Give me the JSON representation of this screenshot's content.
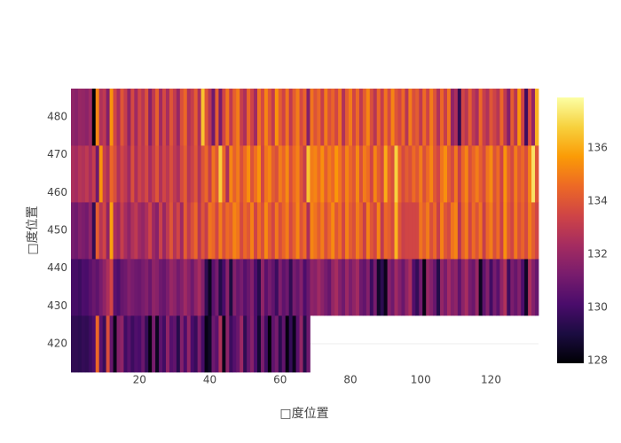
{
  "chart_data": {
    "type": "heatmap",
    "x_label": "□度位置",
    "y_label": "□度位置",
    "x": [
      1,
      2,
      3,
      4,
      5,
      6,
      7,
      8,
      9,
      10,
      11,
      12,
      13,
      14,
      15,
      16,
      17,
      18,
      19,
      20,
      21,
      22,
      23,
      24,
      25,
      26,
      27,
      28,
      29,
      30,
      31,
      32,
      33,
      34,
      35,
      36,
      37,
      38,
      39,
      40,
      41,
      42,
      43,
      44,
      45,
      46,
      47,
      48,
      49,
      50,
      51,
      52,
      53,
      54,
      55,
      56,
      57,
      58,
      59,
      60,
      61,
      62,
      63,
      64,
      65,
      66,
      67,
      68,
      69,
      70,
      71,
      72,
      73,
      74,
      75,
      76,
      77,
      78,
      79,
      80,
      81,
      82,
      83,
      84,
      85,
      86,
      87,
      88,
      89,
      90,
      91,
      92,
      93,
      94,
      95,
      96,
      97,
      98,
      99,
      100,
      101,
      102,
      103,
      104,
      105,
      106,
      107,
      108,
      109,
      110,
      111,
      112,
      113,
      114,
      115,
      116,
      117,
      118,
      119,
      120,
      121,
      122,
      123,
      124,
      125,
      126,
      127,
      128,
      129,
      130,
      131,
      132,
      133
    ],
    "y": [
      420,
      435,
      450,
      465,
      480
    ],
    "z": [
      [
        129.5,
        129.5,
        129.4,
        129.6,
        129.5,
        129.8,
        130.2,
        134.5,
        130.5,
        129.7,
        133.8,
        130.8,
        128.3,
        131.5,
        131.8,
        129.9,
        130.5,
        129.8,
        130.3,
        130.1,
        130.9,
        129.6,
        128.1,
        131.2,
        128.4,
        130.6,
        129.9,
        131.8,
        130.4,
        130.7,
        129.3,
        131.5,
        130.2,
        131.9,
        130.1,
        129.7,
        131.4,
        130.0,
        128.2,
        128.6,
        131.0,
        130.5,
        132.6,
        128.3,
        131.7,
        129.8,
        130.4,
        130.9,
        132.1,
        129.5,
        130.8,
        131.6,
        130.2,
        128.7,
        131.3,
        129.9,
        128.0,
        130.6,
        131.2,
        129.4,
        130.7,
        128.1,
        129.6,
        128.3,
        130.5,
        131.9,
        129.2,
        131.0,
        null,
        null,
        null,
        null,
        null,
        null,
        null,
        null,
        null,
        null,
        null,
        null,
        null,
        null,
        null,
        null,
        null,
        null,
        null,
        null,
        null,
        null,
        null,
        null,
        null,
        null,
        null,
        null,
        null,
        null,
        null,
        null,
        null,
        null,
        null,
        null,
        null,
        null,
        null,
        null,
        null,
        null,
        null,
        null,
        null,
        null,
        null,
        null,
        null,
        null,
        null,
        null,
        null,
        null,
        null,
        null,
        null,
        null,
        null,
        null,
        null,
        null,
        null,
        null,
        null
      ],
      [
        130.0,
        130.0,
        129.8,
        130.2,
        130.1,
        130.5,
        130.9,
        130.6,
        131.2,
        131.8,
        132.5,
        133.5,
        130.5,
        130.2,
        130.8,
        131.0,
        131.5,
        131.2,
        131.0,
        130.9,
        131.2,
        131.5,
        130.9,
        131.8,
        131.6,
        131.0,
        130.8,
        131.3,
        132.0,
        131.7,
        131.1,
        131.5,
        132.2,
        131.6,
        131.0,
        131.8,
        132.4,
        131.5,
        129.5,
        128.4,
        130.5,
        131.2,
        129.2,
        130.1,
        131.7,
        129.0,
        131.5,
        130.8,
        131.2,
        130.4,
        130.9,
        131.5,
        130.2,
        129.3,
        131.8,
        130.5,
        131.2,
        130.7,
        129.8,
        131.4,
        130.6,
        131.0,
        129.5,
        131.2,
        130.8,
        131.5,
        130.2,
        130.9,
        131.8,
        131.6,
        132.2,
        131.7,
        131.2,
        130.8,
        131.9,
        132.4,
        131.5,
        131.0,
        132.1,
        131.3,
        131.8,
        132.3,
        131.0,
        130.7,
        131.5,
        129.8,
        131.2,
        128.6,
        129.4,
        128.3,
        131.6,
        131.0,
        132.2,
        131.5,
        130.9,
        131.8,
        132.5,
        130.3,
        129.6,
        131.1,
        128.2,
        132.0,
        131.5,
        130.8,
        129.2,
        131.9,
        131.2,
        132.3,
        131.5,
        131.8,
        130.6,
        131.7,
        132.4,
        131.2,
        130.9,
        132.0,
        128.4,
        130.6,
        131.5,
        129.9,
        131.2,
        130.5,
        131.8,
        132.6,
        129.8,
        131.3,
        130.8,
        131.5,
        130.2,
        128.5,
        132.5,
        131.5,
        130.8
      ],
      [
        131.2,
        131.0,
        131.5,
        131.3,
        131.1,
        131.8,
        129.5,
        134.2,
        132.8,
        133.5,
        131.8,
        135.8,
        132.5,
        132.0,
        133.2,
        132.4,
        131.8,
        132.6,
        133.0,
        132.2,
        131.9,
        132.5,
        133.4,
        132.1,
        131.6,
        133.3,
        132.0,
        133.0,
        134.0,
        132.7,
        133.5,
        132.2,
        134.2,
        133.0,
        133.8,
        134.5,
        132.8,
        134.0,
        133.2,
        134.8,
        134.5,
        133.5,
        135.0,
        133.8,
        134.6,
        134.2,
        135.2,
        134.8,
        133.6,
        134.5,
        134.0,
        135.1,
        133.4,
        134.7,
        133.8,
        135.3,
        134.2,
        133.5,
        134.9,
        133.8,
        134.4,
        135.0,
        133.6,
        134.3,
        135.2,
        133.9,
        134.6,
        132.5,
        135.2,
        134.8,
        134.2,
        135.0,
        133.8,
        134.5,
        135.3,
        134.0,
        134.7,
        133.5,
        135.1,
        134.2,
        133.8,
        135.0,
        134.3,
        133.2,
        135.1,
        134.0,
        133.5,
        135.2,
        133.0,
        134.5,
        134.2,
        133.6,
        136.2,
        134.0,
        133.3,
        133.5,
        133.5,
        133.5,
        133.5,
        134.8,
        134.2,
        135.0,
        133.8,
        134.5,
        133.2,
        135.1,
        134.0,
        133.6,
        134.8,
        135.2,
        132.8,
        134.3,
        135.0,
        133.5,
        134.6,
        133.9,
        134.8,
        133.2,
        134.5,
        135.0,
        133.8,
        134.6,
        133.3,
        135.4,
        134.0,
        133.5,
        134.9,
        133.8,
        134.4,
        133.6,
        135.0,
        134.2,
        133.5
      ],
      [
        132.5,
        132.3,
        132.8,
        132.6,
        133.0,
        132.4,
        133.2,
        131.0,
        135.5,
        133.2,
        132.5,
        134.5,
        133.8,
        132.6,
        133.5,
        133.0,
        132.2,
        133.8,
        132.5,
        133.4,
        132.9,
        133.6,
        132.4,
        133.2,
        134.0,
        132.6,
        133.5,
        132.9,
        133.8,
        133.0,
        132.5,
        133.6,
        134.2,
        132.8,
        133.3,
        134.0,
        132.7,
        133.9,
        134.5,
        133.2,
        134.8,
        134.0,
        136.8,
        134.5,
        132.5,
        135.2,
        134.3,
        135.0,
        133.8,
        134.6,
        135.4,
        133.9,
        134.7,
        135.5,
        133.5,
        134.8,
        135.2,
        134.2,
        133.8,
        135.0,
        134.4,
        135.3,
        133.8,
        134.6,
        135.1,
        134.0,
        133.2,
        136.5,
        135.0,
        135.2,
        134.6,
        135.4,
        134.2,
        135.0,
        134.5,
        135.6,
        134.8,
        133.9,
        135.2,
        134.5,
        134.0,
        135.3,
        133.8,
        135.0,
        134.6,
        133.5,
        135.2,
        134.2,
        133.6,
        136.0,
        134.3,
        133.8,
        136.8,
        134.5,
        133.6,
        134.2,
        133.8,
        134.6,
        134.0,
        135.0,
        133.8,
        134.6,
        135.2,
        134.0,
        133.5,
        134.8,
        135.4,
        134.2,
        133.6,
        134.9,
        133.2,
        134.5,
        135.2,
        133.8,
        134.4,
        135.0,
        134.3,
        133.6,
        134.8,
        135.3,
        133.9,
        134.6,
        133.4,
        135.5,
        134.2,
        133.6,
        135.0,
        134.0,
        134.5,
        133.7,
        135.2,
        137.2,
        134.0
      ],
      [
        131.8,
        131.6,
        132.0,
        131.9,
        131.7,
        132.2,
        128.0,
        135.2,
        132.6,
        133.0,
        131.5,
        135.5,
        133.5,
        132.4,
        134.0,
        133.2,
        131.8,
        133.6,
        132.2,
        133.5,
        132.8,
        133.9,
        131.6,
        133.0,
        134.3,
        132.2,
        133.6,
        132.4,
        134.0,
        133.1,
        132.0,
        133.8,
        134.5,
        132.6,
        133.2,
        134.2,
        132.5,
        136.5,
        134.0,
        132.8,
        131.0,
        134.2,
        131.2,
        133.5,
        134.8,
        133.0,
        134.3,
        135.0,
        133.2,
        132.5,
        134.5,
        133.4,
        132.2,
        134.8,
        133.6,
        135.2,
        134.0,
        133.0,
        135.5,
        134.2,
        133.4,
        134.8,
        133.0,
        134.2,
        135.0,
        133.6,
        134.4,
        131.5,
        134.8,
        133.9,
        134.5,
        133.2,
        135.0,
        133.8,
        134.4,
        133.5,
        134.8,
        132.6,
        134.2,
        135.0,
        133.5,
        134.6,
        133.0,
        134.2,
        135.2,
        133.8,
        132.8,
        134.5,
        133.2,
        134.8,
        133.6,
        135.2,
        134.0,
        133.5,
        134.5,
        132.8,
        135.0,
        133.8,
        134.2,
        133.0,
        134.6,
        133.4,
        135.0,
        133.9,
        132.6,
        134.5,
        133.2,
        134.8,
        131.8,
        132.5,
        129.5,
        133.5,
        132.8,
        134.2,
        133.0,
        132.4,
        134.5,
        133.2,
        132.6,
        134.0,
        133.4,
        132.8,
        134.5,
        133.0,
        131.5,
        134.2,
        132.8,
        135.6,
        133.4,
        129.8,
        133.6,
        131.8,
        136.2
      ]
    ],
    "xlim": [
      0.5,
      133.5
    ],
    "xticks": [
      20,
      40,
      60,
      80,
      100,
      120
    ],
    "ylim": [
      412.5,
      487.5
    ],
    "yticks": [
      420,
      430,
      440,
      450,
      460,
      470,
      480
    ],
    "zlim": [
      127.9,
      137.9
    ],
    "zticks": [
      128,
      130,
      132,
      134,
      136
    ],
    "colorscale": [
      "#000004",
      "#1b0c41",
      "#4a0c6b",
      "#781c6d",
      "#a52c60",
      "#cf4446",
      "#ed6925",
      "#fb9b06",
      "#f7d13d",
      "#fcffa4"
    ],
    "grid": true
  }
}
